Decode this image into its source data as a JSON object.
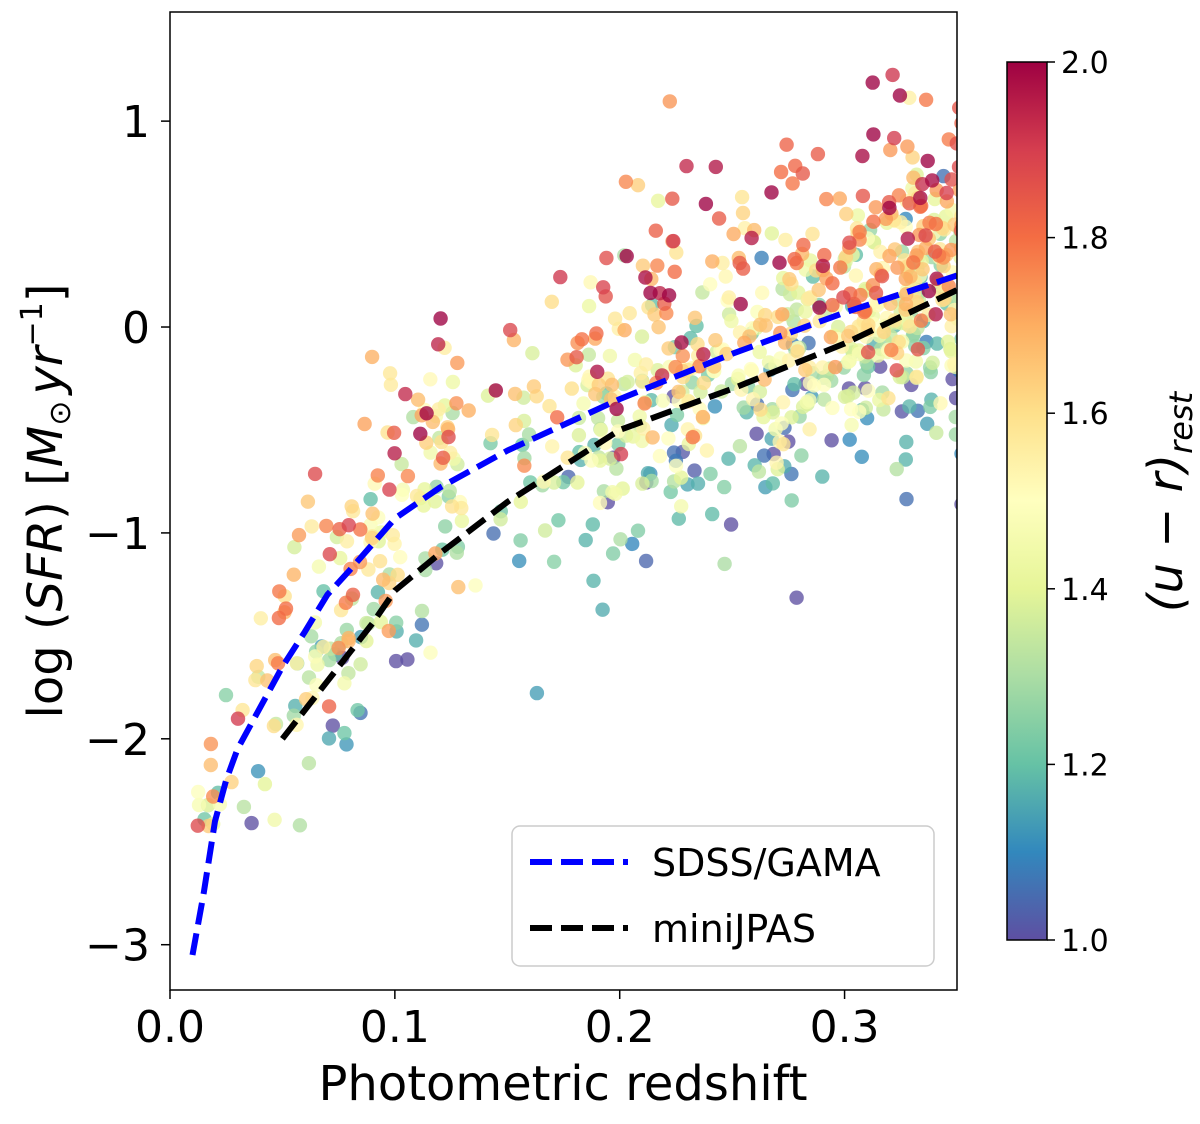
{
  "chart_data": {
    "type": "scatter",
    "xlabel": "Photometric redshift",
    "ylabel": "log (SFR) [M⊙ yr⁻¹]",
    "ylabel_parts": {
      "prefix": "log (",
      "sfr": "SFR",
      "mid": ") [",
      "m": "M",
      "sun": "⊙",
      "yr": "yr",
      "exp": "−1",
      "suffix": "]"
    },
    "xlim": [
      0.0,
      0.35
    ],
    "ylim": [
      -3.22,
      1.53
    ],
    "xticks": [
      {
        "value": 0.0,
        "label": "0.0"
      },
      {
        "value": 0.1,
        "label": "0.1"
      },
      {
        "value": 0.2,
        "label": "0.2"
      },
      {
        "value": 0.3,
        "label": "0.3"
      }
    ],
    "yticks": [
      {
        "value": 1,
        "label": "1"
      },
      {
        "value": 0,
        "label": "0"
      },
      {
        "value": -1,
        "label": "−1"
      },
      {
        "value": -2,
        "label": "−2"
      },
      {
        "value": -3,
        "label": "−3"
      }
    ],
    "colorbar": {
      "label_main": "(u − r)",
      "label_sub": "rest",
      "range": [
        1.0,
        2.0
      ],
      "ticks": [
        {
          "value": 1.0,
          "label": "1.0"
        },
        {
          "value": 1.2,
          "label": "1.2"
        },
        {
          "value": 1.4,
          "label": "1.4"
        },
        {
          "value": 1.6,
          "label": "1.6"
        },
        {
          "value": 1.8,
          "label": "1.8"
        },
        {
          "value": 2.0,
          "label": "2.0"
        }
      ],
      "colormap": "Spectral_r",
      "stops": [
        "#5e4fa2",
        "#3288bd",
        "#66c2a5",
        "#abdda4",
        "#e6f598",
        "#ffffbf",
        "#fee08b",
        "#fdae61",
        "#f46d43",
        "#d53e4f",
        "#9e0142"
      ]
    },
    "series": [
      {
        "name": "SDSS/GAMA",
        "style": "dashed",
        "color": "#0000ff",
        "x": [
          0.01,
          0.015,
          0.02,
          0.025,
          0.03,
          0.04,
          0.05,
          0.06,
          0.07,
          0.08,
          0.1,
          0.12,
          0.15,
          0.2,
          0.25,
          0.3,
          0.35
        ],
        "y": [
          -3.05,
          -2.75,
          -2.4,
          -2.2,
          -2.05,
          -1.85,
          -1.65,
          -1.48,
          -1.3,
          -1.18,
          -0.93,
          -0.78,
          -0.6,
          -0.35,
          -0.13,
          0.07,
          0.25
        ]
      },
      {
        "name": "miniJPAS",
        "style": "dashed",
        "color": "#000000",
        "x": [
          0.05,
          0.06,
          0.07,
          0.08,
          0.09,
          0.1,
          0.12,
          0.15,
          0.2,
          0.25,
          0.3,
          0.35
        ],
        "y": [
          -2.0,
          -1.86,
          -1.72,
          -1.58,
          -1.44,
          -1.28,
          -1.1,
          -0.85,
          -0.5,
          -0.3,
          -0.08,
          0.18
        ]
      }
    ],
    "scatter_summary": "about 900 galaxies, colored by (u-r)rest from 1.0 to 2.0, spanning redshift 0.01 to 0.35 and log SFR -2.45 to 1.32",
    "legend": {
      "position": "lower right",
      "entries": [
        {
          "label": "SDSS/GAMA",
          "color": "#0000ff",
          "style": "dashed"
        },
        {
          "label": "miniJPAS",
          "color": "#000000",
          "style": "dashed"
        }
      ]
    }
  }
}
